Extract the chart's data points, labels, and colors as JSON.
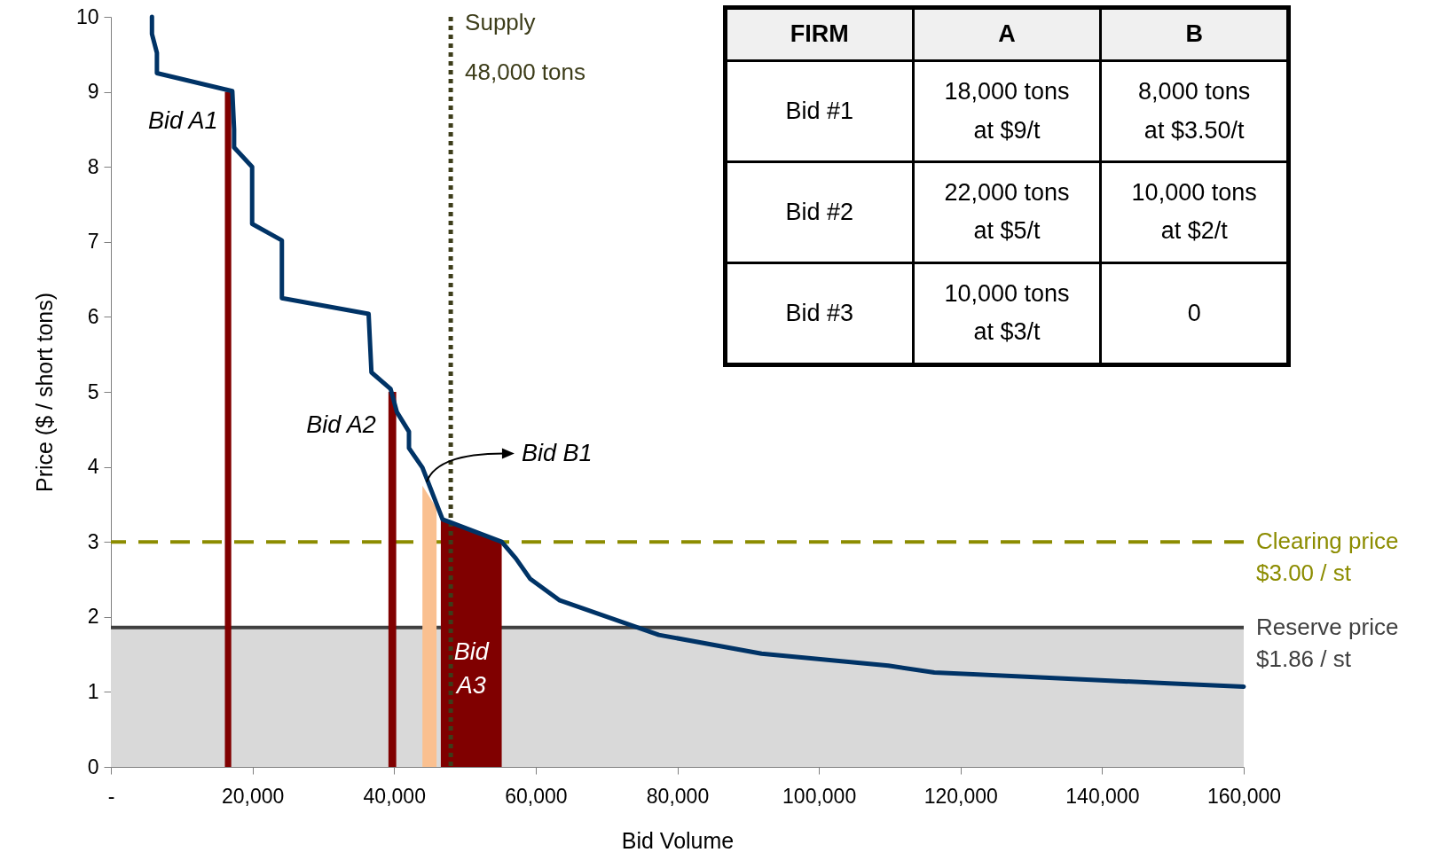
{
  "chart_data": {
    "type": "line",
    "xlabel": "Bid Volume",
    "ylabel": "Price ($ / short tons)",
    "xlim": [
      0,
      160000
    ],
    "ylim": [
      0,
      10
    ],
    "xticks": [
      {
        "value": 0,
        "label": "-"
      },
      {
        "value": 20000,
        "label": "20,000"
      },
      {
        "value": 40000,
        "label": "40,000"
      },
      {
        "value": 60000,
        "label": "60,000"
      },
      {
        "value": 80000,
        "label": "80,000"
      },
      {
        "value": 100000,
        "label": "100,000"
      },
      {
        "value": 120000,
        "label": "120,000"
      },
      {
        "value": 140000,
        "label": "140,000"
      },
      {
        "value": 160000,
        "label": "160,000"
      }
    ],
    "yticks": [
      0,
      1,
      2,
      3,
      4,
      5,
      6,
      7,
      8,
      9,
      10
    ],
    "series": [
      {
        "type": "area",
        "color": "#800000",
        "x": [
          16100,
          17000
        ],
        "values": [
          9,
          9
        ]
      },
      {
        "type": "area",
        "color": "#800000",
        "x": [
          39200,
          40300
        ],
        "values": [
          5,
          5
        ]
      },
      {
        "type": "area",
        "color": "#fac090",
        "x": [
          44000,
          46000
        ],
        "values": [
          3.75,
          3.45
        ]
      },
      {
        "type": "area",
        "color": "#800000",
        "x": [
          46600,
          55200
        ],
        "values": [
          3.3,
          3.0
        ]
      },
      {
        "type": "line",
        "color": "#003366",
        "x": [
          5800,
          5800,
          6500,
          6500,
          17150,
          17400,
          17400,
          19950,
          19950,
          24150,
          24150,
          36400,
          36800,
          39500,
          40400,
          42100,
          42100,
          44000,
          46850,
          55200,
          57200,
          59200,
          63400,
          77400,
          91900,
          109800,
          116300,
          129900,
          150100,
          160000
        ],
        "values": [
          10,
          9.77,
          9.52,
          9.25,
          9.01,
          8.5,
          8.26,
          8.0,
          7.24,
          7.02,
          6.25,
          6.04,
          5.26,
          5.04,
          4.73,
          4.47,
          4.25,
          3.99,
          3.3,
          3.0,
          2.78,
          2.51,
          2.22,
          1.76,
          1.51,
          1.35,
          1.26,
          1.2,
          1.11,
          1.07
        ]
      }
    ],
    "ref_lines": [
      {
        "axis": "y",
        "value": 3,
        "label": "Clearing price\n$3.00 / st",
        "color": "#8c8c00",
        "line_style": "dashed"
      },
      {
        "axis": "y",
        "value": 1.86,
        "label": "Reserve price\n$1.86 / st",
        "color": "#404040",
        "line_style": "solid"
      },
      {
        "axis": "x",
        "value": 48000,
        "label": "Supply\n48,000 tons",
        "color": "#3d3d1a",
        "line_style": "dotted"
      }
    ],
    "bands": [
      {
        "axis": "y",
        "from": 0,
        "to": 1.86,
        "color": "#d9d9d9"
      }
    ],
    "annotations": [
      {
        "text": "Bid A1",
        "x": 16100,
        "y": 8.6
      },
      {
        "text": "Bid A2",
        "x": 39200,
        "y": 4.55
      },
      {
        "text": "Bid B1",
        "x": 44600,
        "y": 3.8
      },
      "Bid\nA3",
      "FIRM",
      "A",
      "B",
      "Bid #1",
      "18,000 tons\nat $9/t",
      "8,000 tons\nat $3.50/t",
      "Bid #2",
      "22,000 tons\nat $5/t",
      "10,000 tons\nat $2/t",
      "Bid #3",
      "10,000 tons\nat $3/t",
      "0"
    ]
  }
}
